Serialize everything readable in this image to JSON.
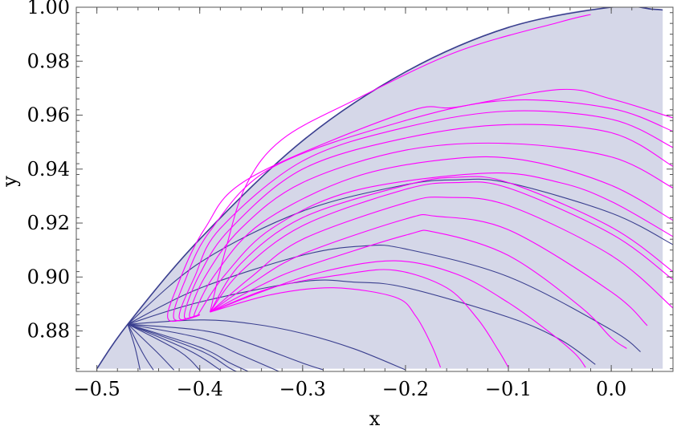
{
  "chart_data": {
    "type": "line",
    "title": "",
    "xlabel": "x",
    "ylabel": "y",
    "xlim": [
      -0.52,
      0.06
    ],
    "ylim": [
      0.865,
      1.0
    ],
    "xticks": [
      {
        "value": -0.5,
        "label": "−0.5"
      },
      {
        "value": -0.4,
        "label": "−0.4"
      },
      {
        "value": -0.3,
        "label": "−0.3"
      },
      {
        "value": -0.2,
        "label": "−0.2"
      },
      {
        "value": -0.1,
        "label": "−0.1"
      },
      {
        "value": 0.0,
        "label": "0.0"
      }
    ],
    "yticks": [
      {
        "value": 0.88,
        "label": "0.88"
      },
      {
        "value": 0.9,
        "label": "0.90"
      },
      {
        "value": 0.92,
        "label": "0.92"
      },
      {
        "value": 0.94,
        "label": "0.94"
      },
      {
        "value": 0.96,
        "label": "0.96"
      },
      {
        "value": 0.98,
        "label": "0.98"
      },
      {
        "value": 1.0,
        "label": "1.00"
      }
    ],
    "grid": false,
    "region": {
      "color": "#d5d7e8",
      "boundary": [
        [
          -0.5,
          0.866
        ],
        [
          -0.47,
          0.8825
        ],
        [
          -0.44,
          0.897
        ],
        [
          -0.4,
          0.914
        ],
        [
          -0.35,
          0.9335
        ],
        [
          -0.3,
          0.9505
        ],
        [
          -0.25,
          0.9645
        ],
        [
          -0.2,
          0.976
        ],
        [
          -0.15,
          0.9855
        ],
        [
          -0.1,
          0.9925
        ],
        [
          -0.05,
          0.9975
        ],
        [
          0.0,
          1.0
        ],
        [
          0.05,
          0.999
        ],
        [
          0.05,
          0.866
        ]
      ]
    },
    "series": [
      {
        "color": "#3a3f8f",
        "values": [
          [
            -0.5,
            0.866
          ],
          [
            -0.47,
            0.8825
          ],
          [
            -0.4,
            0.914
          ],
          [
            -0.3,
            0.9505
          ],
          [
            -0.2,
            0.976
          ],
          [
            -0.1,
            0.9925
          ],
          [
            0.0,
            1.0
          ],
          [
            0.04,
            0.9993
          ],
          [
            0.05,
            0.999
          ]
        ]
      },
      {
        "color": "#3a3f8f",
        "values": [
          [
            -0.47,
            0.8825
          ],
          [
            -0.4,
            0.9053
          ],
          [
            -0.3,
            0.9244
          ],
          [
            -0.2,
            0.9342
          ],
          [
            -0.15,
            0.936
          ],
          [
            -0.1,
            0.9349
          ],
          [
            0.0,
            0.9237
          ],
          [
            0.06,
            0.912
          ]
        ]
      },
      {
        "color": "#3a3f8f",
        "values": [
          [
            -0.47,
            0.8825
          ],
          [
            -0.4,
            0.8958
          ],
          [
            -0.3,
            0.9081
          ],
          [
            -0.24,
            0.9115
          ],
          [
            -0.2,
            0.9104
          ],
          [
            -0.1,
            0.9001
          ],
          [
            0.0,
            0.8804
          ],
          [
            0.0285,
            0.8723
          ]
        ]
      },
      {
        "color": "#3a3f8f",
        "values": [
          [
            -0.47,
            0.8825
          ],
          [
            -0.4,
            0.8907
          ],
          [
            -0.3,
            0.8983
          ],
          [
            -0.25,
            0.8981
          ],
          [
            -0.2,
            0.8961
          ],
          [
            -0.1,
            0.8851
          ],
          [
            -0.05,
            0.8769
          ],
          [
            -0.0155,
            0.8676
          ]
        ]
      },
      {
        "color": "#3a3f8f",
        "values": [
          [
            -0.47,
            0.8825
          ],
          [
            -0.4,
            0.8841
          ],
          [
            -0.35,
            0.8827
          ],
          [
            -0.3,
            0.8791
          ],
          [
            -0.25,
            0.8734
          ],
          [
            -0.2,
            0.8656
          ]
        ]
      },
      {
        "color": "#3a3f8f",
        "values": [
          [
            -0.47,
            0.8825
          ],
          [
            -0.4,
            0.8803
          ],
          [
            -0.36,
            0.8765
          ],
          [
            -0.3,
            0.8681
          ],
          [
            -0.28,
            0.8656
          ]
        ]
      },
      {
        "color": "#3a3f8f",
        "values": [
          [
            -0.47,
            0.8825
          ],
          [
            -0.4,
            0.8774
          ],
          [
            -0.36,
            0.8711
          ],
          [
            -0.32,
            0.8645
          ]
        ]
      },
      {
        "color": "#3a3f8f",
        "values": [
          [
            -0.47,
            0.8825
          ],
          [
            -0.4,
            0.874
          ],
          [
            -0.37,
            0.868
          ],
          [
            -0.35,
            0.8645
          ]
        ]
      },
      {
        "color": "#3a3f8f",
        "values": [
          [
            -0.47,
            0.8825
          ],
          [
            -0.4,
            0.8728
          ],
          [
            -0.37,
            0.866
          ],
          [
            -0.36,
            0.8645
          ]
        ]
      },
      {
        "color": "#3a3f8f",
        "values": [
          [
            -0.47,
            0.8825
          ],
          [
            -0.41,
            0.8727
          ],
          [
            -0.38,
            0.8655
          ]
        ]
      },
      {
        "color": "#3a3f8f",
        "values": [
          [
            -0.47,
            0.8825
          ],
          [
            -0.42,
            0.8725
          ],
          [
            -0.4,
            0.8655
          ]
        ]
      },
      {
        "color": "#3a3f8f",
        "values": [
          [
            -0.47,
            0.8825
          ],
          [
            -0.44,
            0.8715
          ],
          [
            -0.425,
            0.8655
          ]
        ]
      },
      {
        "color": "#3a3f8f",
        "values": [
          [
            -0.47,
            0.8825
          ],
          [
            -0.455,
            0.8715
          ],
          [
            -0.445,
            0.8655
          ]
        ]
      },
      {
        "color": "#3a3f8f",
        "values": [
          [
            -0.47,
            0.8825
          ],
          [
            -0.463,
            0.874
          ],
          [
            -0.458,
            0.8655
          ]
        ]
      },
      {
        "color": "#ff00ff",
        "values": [
          [
            -0.39,
            0.887
          ],
          [
            -0.375,
            0.91
          ],
          [
            -0.355,
            0.934
          ],
          [
            -0.32,
            0.951
          ],
          [
            -0.25,
            0.9655
          ],
          [
            -0.15,
            0.9835
          ],
          [
            -0.05,
            0.9945
          ],
          [
            -0.02,
            0.9973
          ]
        ]
      },
      {
        "color": "#ff00ff",
        "values": [
          [
            -0.4,
            0.886
          ],
          [
            -0.43,
            0.884
          ],
          [
            -0.423,
            0.8955
          ],
          [
            -0.395,
            0.918
          ],
          [
            -0.35,
            0.937
          ],
          [
            -0.2,
            0.961
          ],
          [
            -0.15,
            0.963
          ],
          [
            -0.05,
            0.9695
          ],
          [
            0.0,
            0.966
          ],
          [
            0.06,
            0.959
          ]
        ]
      },
      {
        "color": "#ff00ff",
        "values": [
          [
            -0.4,
            0.886
          ],
          [
            -0.425,
            0.8845
          ],
          [
            -0.415,
            0.898
          ],
          [
            -0.39,
            0.917
          ],
          [
            -0.33,
            0.9405
          ],
          [
            -0.2,
            0.958
          ],
          [
            -0.1,
            0.9655
          ],
          [
            0.0,
            0.9625
          ],
          [
            0.06,
            0.954
          ]
        ]
      },
      {
        "color": "#ff00ff",
        "values": [
          [
            -0.4,
            0.886
          ],
          [
            -0.42,
            0.885
          ],
          [
            -0.405,
            0.9
          ],
          [
            -0.38,
            0.918
          ],
          [
            -0.3,
            0.943
          ],
          [
            -0.2,
            0.9555
          ],
          [
            -0.1,
            0.9615
          ],
          [
            0.0,
            0.9585
          ],
          [
            0.06,
            0.948
          ]
        ]
      },
      {
        "color": "#ff00ff",
        "values": [
          [
            -0.4,
            0.886
          ],
          [
            -0.415,
            0.8855
          ],
          [
            -0.4,
            0.901
          ],
          [
            -0.37,
            0.918
          ],
          [
            -0.3,
            0.94
          ],
          [
            -0.2,
            0.9515
          ],
          [
            -0.1,
            0.9565
          ],
          [
            0.0,
            0.9535
          ],
          [
            0.06,
            0.941
          ]
        ]
      },
      {
        "color": "#ff00ff",
        "values": [
          [
            -0.4,
            0.886
          ],
          [
            -0.41,
            0.886
          ],
          [
            -0.395,
            0.9
          ],
          [
            -0.36,
            0.918
          ],
          [
            -0.3,
            0.935
          ],
          [
            -0.2,
            0.947
          ],
          [
            -0.1,
            0.9495
          ],
          [
            0.0,
            0.9445
          ],
          [
            0.06,
            0.933
          ]
        ]
      },
      {
        "color": "#ff00ff",
        "values": [
          [
            -0.4,
            0.886
          ],
          [
            -0.405,
            0.8865
          ],
          [
            -0.385,
            0.901
          ],
          [
            -0.34,
            0.92
          ],
          [
            -0.25,
            0.937
          ],
          [
            -0.15,
            0.944
          ],
          [
            -0.08,
            0.943
          ],
          [
            0.0,
            0.934
          ],
          [
            0.06,
            0.921
          ]
        ]
      },
      {
        "color": "#ff00ff",
        "values": [
          [
            -0.4,
            0.886
          ],
          [
            -0.4,
            0.887
          ],
          [
            -0.375,
            0.901
          ],
          [
            -0.33,
            0.918
          ],
          [
            -0.25,
            0.932
          ],
          [
            -0.12,
            0.9385
          ],
          [
            -0.05,
            0.935
          ],
          [
            0.0,
            0.928
          ],
          [
            0.06,
            0.915
          ]
        ]
      },
      {
        "color": "#ff00ff",
        "values": [
          [
            -0.39,
            0.887
          ],
          [
            -0.36,
            0.905
          ],
          [
            -0.3,
            0.922
          ],
          [
            -0.2,
            0.934
          ],
          [
            -0.15,
            0.937
          ],
          [
            -0.1,
            0.935
          ],
          [
            0.0,
            0.9185
          ],
          [
            0.06,
            0.902
          ]
        ]
      },
      {
        "color": "#ff00ff",
        "values": [
          [
            -0.39,
            0.887
          ],
          [
            -0.36,
            0.902
          ],
          [
            -0.3,
            0.919
          ],
          [
            -0.2,
            0.9325
          ],
          [
            -0.15,
            0.935
          ],
          [
            -0.1,
            0.933
          ],
          [
            0.0,
            0.916
          ],
          [
            0.06,
            0.899
          ]
        ]
      },
      {
        "color": "#ff00ff",
        "values": [
          [
            -0.39,
            0.887
          ],
          [
            -0.35,
            0.9
          ],
          [
            -0.3,
            0.914
          ],
          [
            -0.2,
            0.9275
          ],
          [
            -0.16,
            0.9295
          ],
          [
            -0.1,
            0.9265
          ],
          [
            0.0,
            0.908
          ],
          [
            0.06,
            0.8885
          ]
        ]
      },
      {
        "color": "#ff00ff",
        "values": [
          [
            -0.39,
            0.887
          ],
          [
            -0.35,
            0.8975
          ],
          [
            -0.3,
            0.9085
          ],
          [
            -0.2,
            0.9215
          ],
          [
            -0.17,
            0.9225
          ],
          [
            -0.1,
            0.9175
          ],
          [
            0.0,
            0.8945
          ],
          [
            0.035,
            0.882
          ]
        ]
      },
      {
        "color": "#ff00ff",
        "values": [
          [
            -0.39,
            0.887
          ],
          [
            -0.34,
            0.897
          ],
          [
            -0.3,
            0.9035
          ],
          [
            -0.2,
            0.9155
          ],
          [
            -0.17,
            0.9165
          ],
          [
            -0.1,
            0.908
          ],
          [
            -0.03,
            0.889
          ],
          [
            0.0,
            0.8775
          ],
          [
            0.015,
            0.8735
          ]
        ]
      },
      {
        "color": "#ff00ff",
        "values": [
          [
            -0.39,
            0.887
          ],
          [
            -0.34,
            0.8945
          ],
          [
            -0.28,
            0.902
          ],
          [
            -0.21,
            0.906
          ],
          [
            -0.15,
            0.901
          ],
          [
            -0.1,
            0.8905
          ],
          [
            -0.06,
            0.8795
          ],
          [
            -0.035,
            0.8715
          ],
          [
            -0.025,
            0.8665
          ]
        ]
      },
      {
        "color": "#ff00ff",
        "values": [
          [
            -0.39,
            0.887
          ],
          [
            -0.33,
            0.896
          ],
          [
            -0.26,
            0.901
          ],
          [
            -0.21,
            0.9025
          ],
          [
            -0.16,
            0.896
          ],
          [
            -0.13,
            0.8845
          ],
          [
            -0.11,
            0.873
          ],
          [
            -0.1,
            0.8665
          ]
        ]
      },
      {
        "color": "#ff00ff",
        "values": [
          [
            -0.39,
            0.887
          ],
          [
            -0.33,
            0.8935
          ],
          [
            -0.27,
            0.896
          ],
          [
            -0.21,
            0.8925
          ],
          [
            -0.19,
            0.8855
          ],
          [
            -0.175,
            0.875
          ],
          [
            -0.166,
            0.8665
          ]
        ]
      }
    ]
  }
}
